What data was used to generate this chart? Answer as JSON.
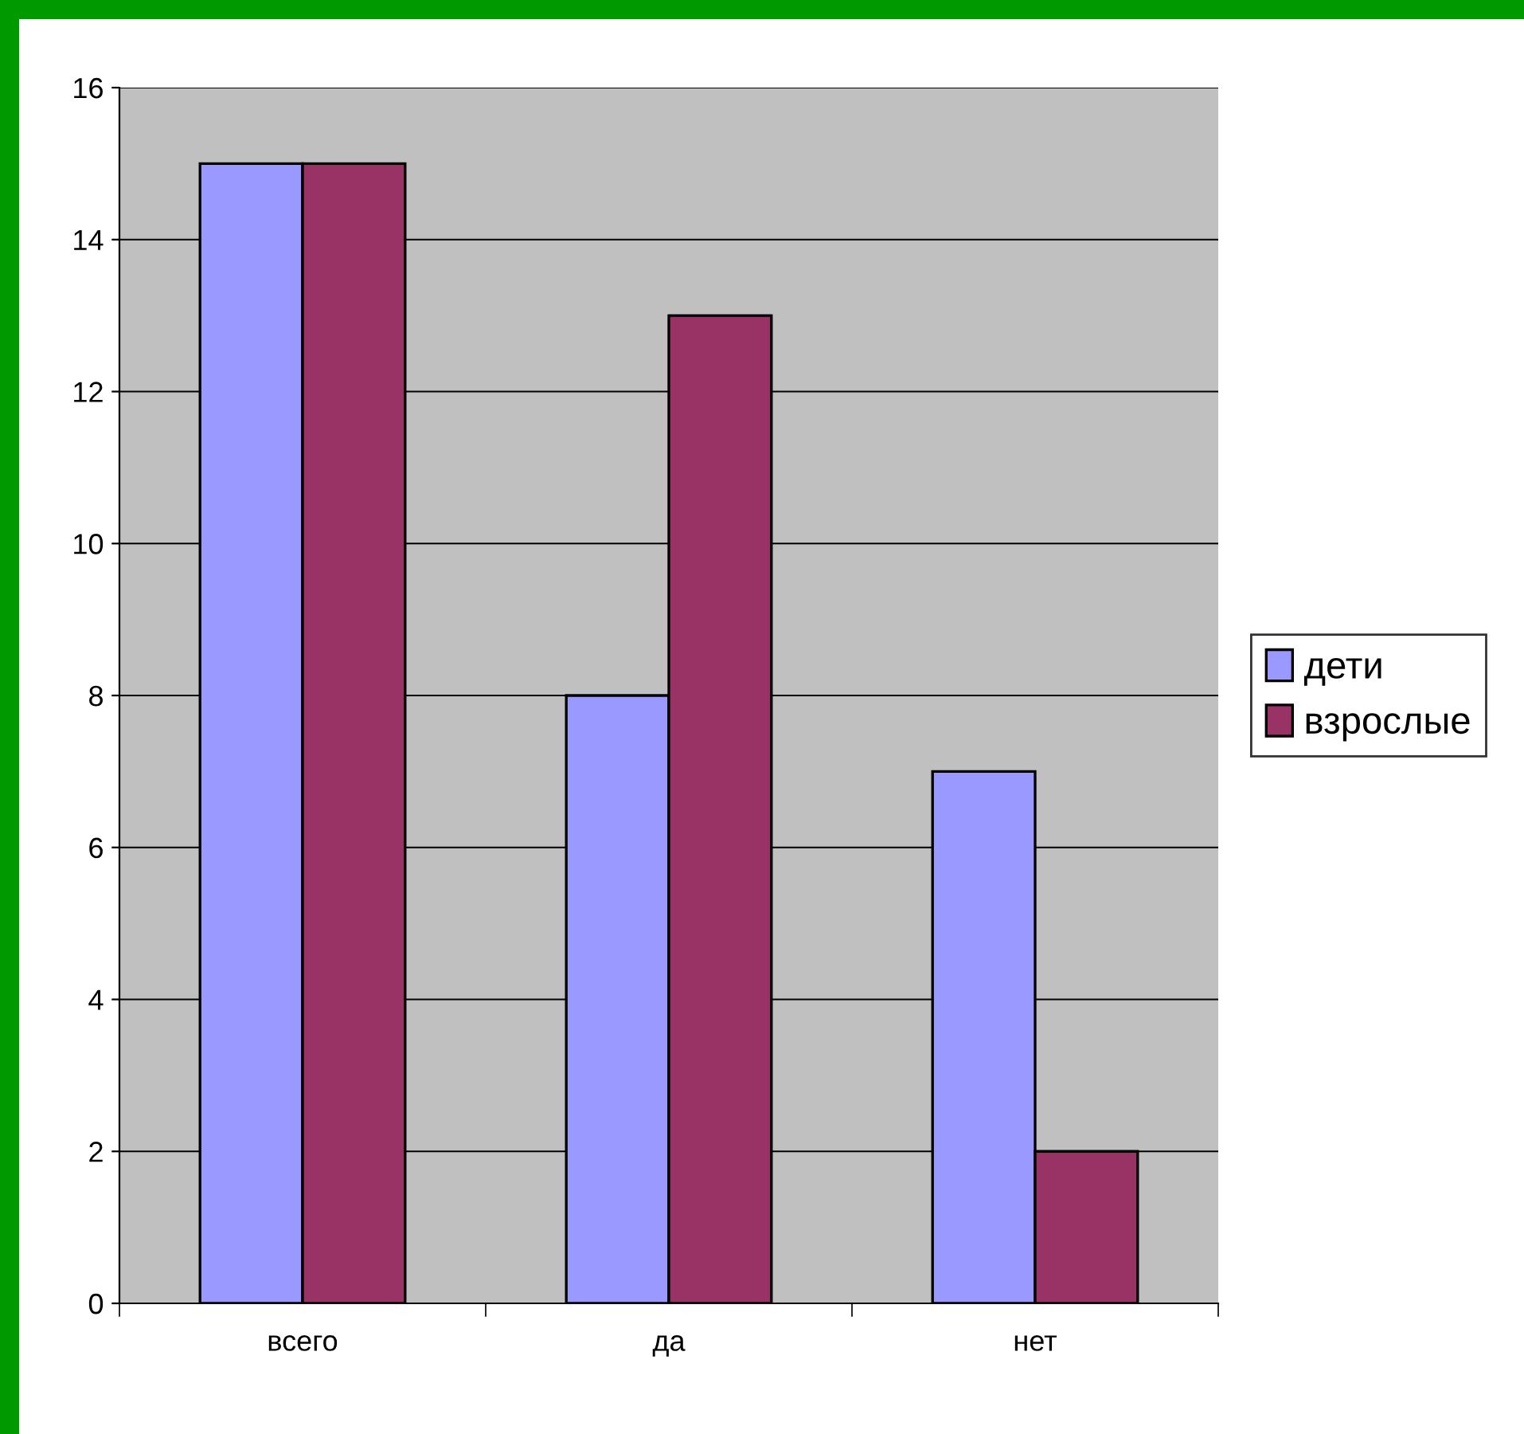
{
  "chart_data": {
    "type": "bar",
    "categories": [
      "всего",
      "да",
      "нет"
    ],
    "series": [
      {
        "name": "дети",
        "color": "#9999ff",
        "values": [
          15,
          8,
          7
        ]
      },
      {
        "name": "взрослые",
        "color": "#993366",
        "values": [
          15,
          13,
          2
        ]
      }
    ],
    "ylim": [
      0,
      16
    ],
    "yticks": [
      0,
      2,
      4,
      6,
      8,
      10,
      12,
      14,
      16
    ],
    "grid": "y",
    "legend": "right"
  }
}
